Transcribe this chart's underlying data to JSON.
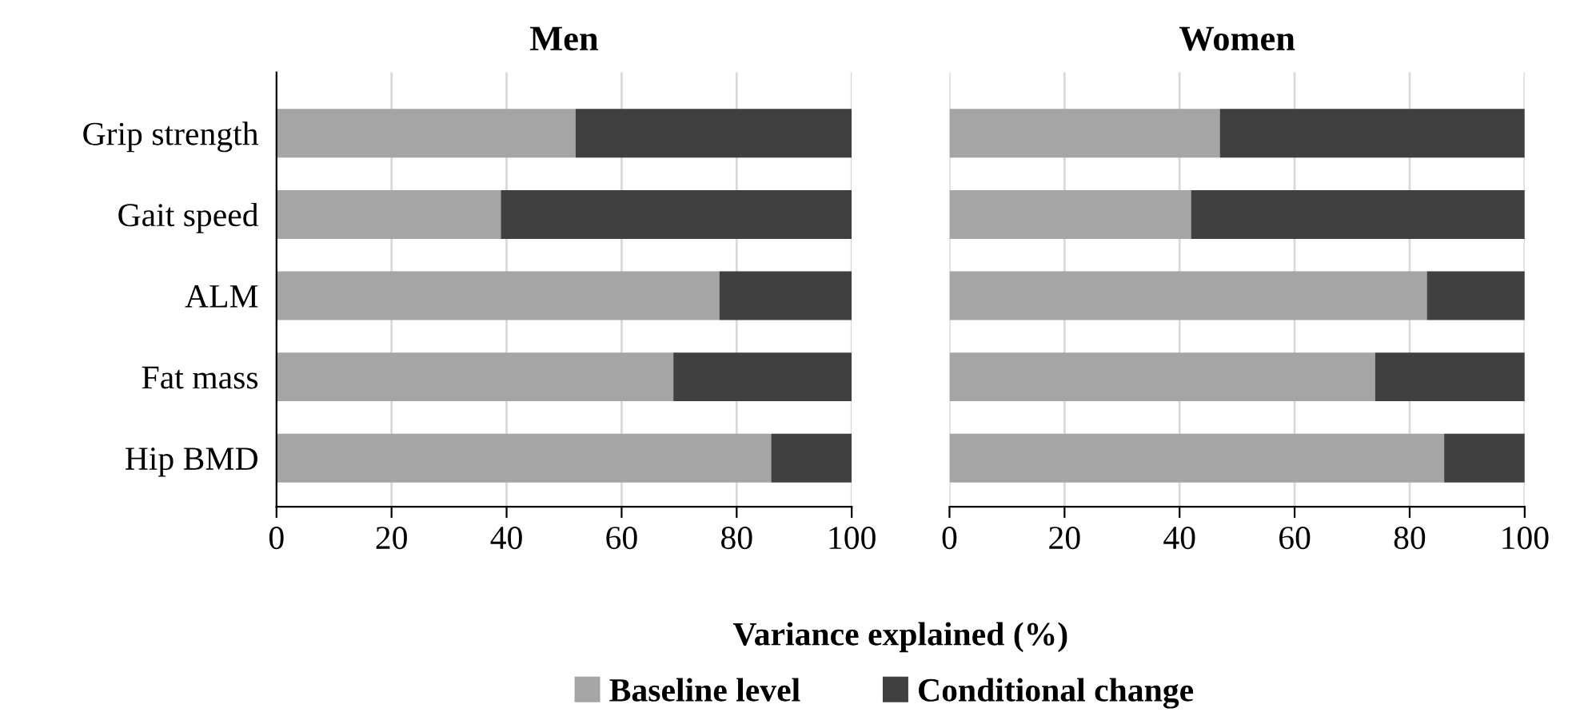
{
  "chart_data": [
    {
      "type": "bar",
      "title": "Men",
      "orientation": "horizontal",
      "stacked": true,
      "categories": [
        "Grip strength",
        "Gait speed",
        "ALM",
        "Fat mass",
        "Hip BMD"
      ],
      "series": [
        {
          "name": "Baseline level",
          "color": "#a5a5a5",
          "values": [
            52,
            39,
            77,
            69,
            86
          ]
        },
        {
          "name": "Conditional change",
          "color": "#404040",
          "values": [
            48,
            61,
            23,
            31,
            14
          ]
        }
      ],
      "xlim": [
        0,
        100
      ],
      "xticks": [
        0,
        20,
        40,
        60,
        80,
        100
      ],
      "grid": "x",
      "xlabel": "Variance explained (%)",
      "legend": "bottom"
    },
    {
      "type": "bar",
      "title": "Women",
      "orientation": "horizontal",
      "stacked": true,
      "categories": [
        null,
        null,
        null,
        null,
        null
      ],
      "series": [
        {
          "color": "#a5a5a5",
          "values": [
            47,
            42,
            83,
            74,
            86
          ]
        },
        {
          "color": "#404040",
          "values": [
            53,
            58,
            17,
            26,
            14
          ]
        }
      ],
      "xlim": [
        0,
        100
      ],
      "xticks": [
        0,
        20,
        40,
        60,
        80,
        100
      ],
      "grid": "x",
      "tick_labels": "x"
    }
  ]
}
